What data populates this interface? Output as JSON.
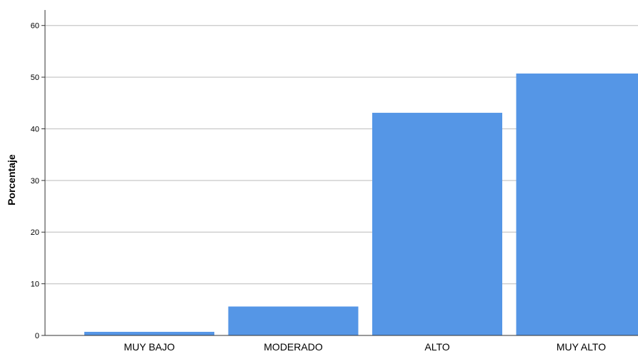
{
  "chart_data": {
    "type": "bar",
    "categories": [
      "MUY BAJO",
      "MODERADO",
      "ALTO",
      "MUY ALTO"
    ],
    "values": [
      0.7,
      5.6,
      43.1,
      50.7
    ],
    "title": "",
    "xlabel": "",
    "ylabel": "Porcentaje",
    "ylim": [
      0,
      63
    ],
    "yticks": [
      0,
      10,
      20,
      30,
      40,
      50,
      60
    ],
    "grid": true,
    "colors": {
      "bar": "#5596e6",
      "grid": "#c8c8c8",
      "axis": "#333333"
    }
  }
}
